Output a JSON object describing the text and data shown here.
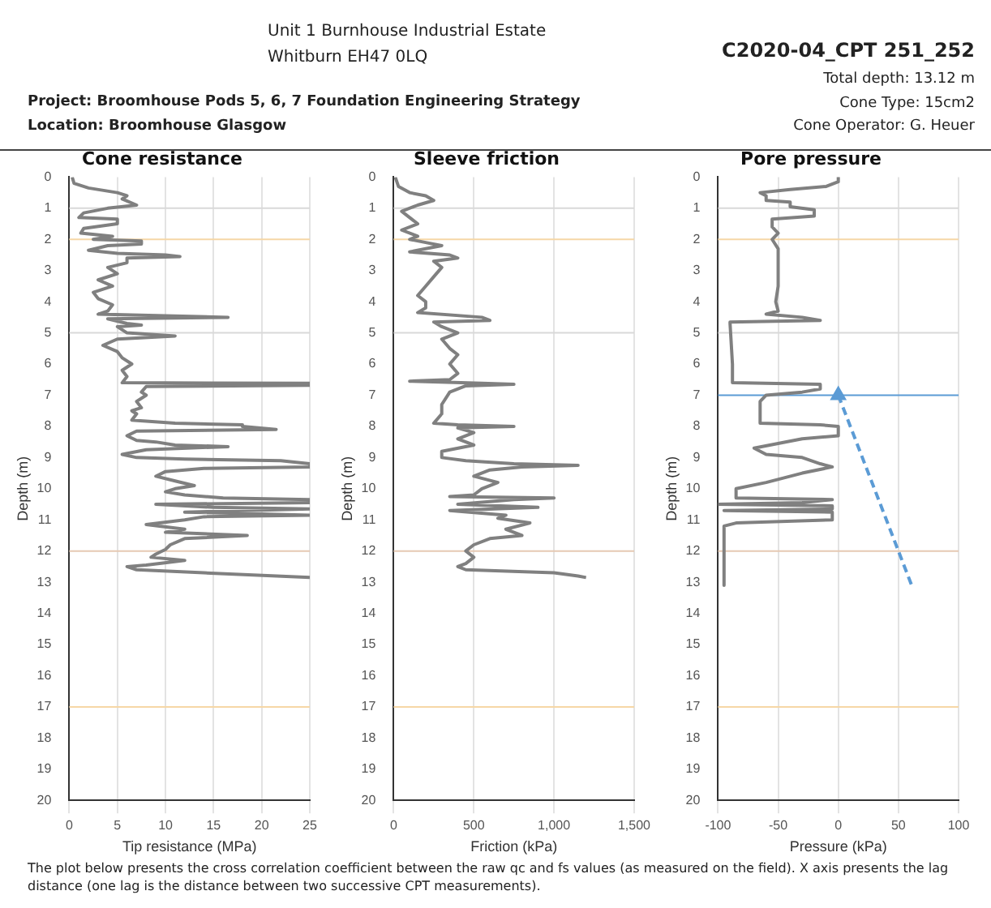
{
  "chart_data": [
    {
      "type": "other",
      "title": "C2020-04_CPT 251_252",
      "annotations": [
        "Unit 1 Burnhouse Industrial Estate",
        "Whitburn EH47 0LQ",
        "Project:  Broomhouse Pods 5, 6, 7 Foundation Engineering Strategy",
        "Location:  Broomhouse Glasgow",
        "Total depth: 13.12 m",
        "Cone Type: 15cm2",
        "Cone Operator: G. Heuer"
      ]
    },
    {
      "type": "line",
      "title": "Cone resistance",
      "xlabel": "Tip resistance (MPa)",
      "ylabel": "Depth (m)",
      "xlim": [
        0,
        25
      ],
      "ylim": [
        20,
        0
      ],
      "xticks": [
        0,
        5,
        10,
        15,
        20,
        25
      ],
      "yticks": [
        0,
        1,
        2,
        3,
        4,
        5,
        6,
        7,
        8,
        9,
        10,
        11,
        12,
        13,
        14,
        15,
        16,
        17,
        18,
        19,
        20
      ],
      "grid": "x",
      "ref_lines": [
        {
          "axis": "y",
          "value": 1,
          "color": "#d9d9d9"
        },
        {
          "axis": "y",
          "value": 2,
          "color": "#f6d7a6"
        },
        {
          "axis": "y",
          "value": 5,
          "color": "#d9d9d9"
        },
        {
          "axis": "y",
          "value": 12,
          "color": "#e6c9b3"
        },
        {
          "axis": "y",
          "value": 17,
          "color": "#f6d7a6"
        }
      ],
      "series": [
        {
          "color": "#808080",
          "x": [
            0.3,
            0.5,
            2,
            5,
            6,
            5.5,
            7,
            4,
            1.5,
            1,
            5,
            5,
            1.5,
            1.2,
            4.5,
            2.5,
            7.5,
            7.5,
            4,
            2,
            5,
            10,
            11.5,
            6,
            6,
            4,
            5,
            3,
            4.5,
            2.5,
            3,
            4.5,
            4,
            3,
            16.5,
            4,
            6,
            7.5,
            5,
            6,
            11,
            5,
            3.5,
            5,
            5.5,
            6.5,
            5.5,
            6,
            5.5,
            25,
            25,
            8,
            7.5,
            8,
            7,
            7.5,
            6.5,
            7,
            6.5,
            11,
            18,
            18,
            21.5,
            7,
            6,
            7,
            9,
            11,
            16.5,
            8,
            5.5,
            7,
            12,
            22,
            25,
            25,
            14,
            10,
            9,
            11,
            13,
            11,
            10,
            12,
            16,
            25,
            25,
            9,
            15,
            25,
            12,
            25,
            14,
            12,
            8,
            12,
            10,
            18.5,
            12,
            10.5,
            10,
            9,
            8.5,
            12,
            8,
            6,
            7,
            14,
            25
          ],
          "values": [
            0,
            0.2,
            0.35,
            0.5,
            0.6,
            0.7,
            0.9,
            1,
            1.15,
            1.3,
            1.35,
            1.5,
            1.65,
            1.8,
            1.9,
            2,
            2.05,
            2.15,
            2.2,
            2.35,
            2.45,
            2.5,
            2.55,
            2.6,
            2.75,
            2.9,
            3.1,
            3.3,
            3.5,
            3.7,
            3.9,
            4.1,
            4.3,
            4.4,
            4.5,
            4.55,
            4.7,
            4.75,
            4.8,
            5,
            5.1,
            5.2,
            5.4,
            5.6,
            5.8,
            6,
            6.2,
            6.4,
            6.6,
            6.62,
            6.68,
            6.72,
            6.9,
            7,
            7.2,
            7.4,
            7.5,
            7.6,
            7.8,
            7.9,
            7.95,
            8,
            8.1,
            8.15,
            8.3,
            8.45,
            8.5,
            8.6,
            8.65,
            8.75,
            8.9,
            9,
            9.05,
            9.1,
            9.2,
            9.3,
            9.35,
            9.45,
            9.6,
            9.75,
            9.9,
            10,
            10.1,
            10.2,
            10.3,
            10.35,
            10.45,
            10.5,
            10.6,
            10.65,
            10.75,
            10.85,
            10.9,
            11,
            11.15,
            11.3,
            11.4,
            11.5,
            11.6,
            11.8,
            11.95,
            12.1,
            12.2,
            12.3,
            12.45,
            12.5,
            12.6,
            12.7,
            12.85
          ]
        }
      ]
    },
    {
      "type": "line",
      "title": "Sleeve friction",
      "xlabel": "Friction (kPa)",
      "ylabel": "Depth (m)",
      "xlim": [
        0,
        1500
      ],
      "ylim": [
        20,
        0
      ],
      "xticks": [
        0,
        500,
        {
          "value": 1000,
          "label": "1,000"
        },
        {
          "value": 1500,
          "label": "1,500"
        }
      ],
      "yticks": [
        0,
        1,
        2,
        3,
        4,
        5,
        6,
        7,
        8,
        9,
        10,
        11,
        12,
        13,
        14,
        15,
        16,
        17,
        18,
        19,
        20
      ],
      "grid": "x",
      "ref_lines": [
        {
          "axis": "y",
          "value": 1,
          "color": "#d9d9d9"
        },
        {
          "axis": "y",
          "value": 2,
          "color": "#f6d7a6"
        },
        {
          "axis": "y",
          "value": 5,
          "color": "#d9d9d9"
        },
        {
          "axis": "y",
          "value": 12,
          "color": "#e6c9b3"
        },
        {
          "axis": "y",
          "value": 17,
          "color": "#f6d7a6"
        }
      ],
      "series": [
        {
          "color": "#808080",
          "x": [
            10,
            30,
            100,
            200,
            250,
            150,
            50,
            100,
            150,
            50,
            150,
            100,
            200,
            300,
            200,
            100,
            350,
            400,
            250,
            300,
            250,
            200,
            150,
            200,
            200,
            150,
            550,
            600,
            250,
            300,
            400,
            300,
            350,
            400,
            350,
            400,
            350,
            100,
            550,
            750,
            450,
            350,
            300,
            300,
            250,
            400,
            750,
            400,
            500,
            400,
            500,
            300,
            300,
            450,
            750,
            1150,
            800,
            600,
            500,
            650,
            550,
            500,
            350,
            1000,
            750,
            400,
            900,
            350,
            700,
            650,
            850,
            700,
            800,
            600,
            500,
            450,
            500,
            450,
            400,
            450,
            1000,
            1150,
            1200
          ],
          "values": [
            0,
            0.3,
            0.5,
            0.6,
            0.75,
            0.9,
            1.1,
            1.3,
            1.5,
            1.7,
            1.9,
            2,
            2.1,
            2.2,
            2.3,
            2.4,
            2.5,
            2.6,
            2.7,
            2.9,
            3.2,
            3.5,
            3.8,
            4,
            4.2,
            4.35,
            4.5,
            4.6,
            4.65,
            4.8,
            5,
            5.2,
            5.5,
            5.7,
            6,
            6.3,
            6.5,
            6.55,
            6.62,
            6.65,
            6.7,
            6.9,
            7.3,
            7.6,
            7.9,
            7.95,
            8,
            8.05,
            8.2,
            8.4,
            8.6,
            8.8,
            9,
            9.1,
            9.2,
            9.25,
            9.3,
            9.4,
            9.6,
            9.8,
            10,
            10.2,
            10.25,
            10.3,
            10.35,
            10.5,
            10.6,
            10.7,
            10.85,
            10.95,
            11.1,
            11.3,
            11.5,
            11.6,
            11.8,
            12,
            12.2,
            12.4,
            12.5,
            12.6,
            12.7,
            12.8,
            12.85
          ]
        }
      ]
    },
    {
      "type": "line",
      "title": "Pore pressure",
      "xlabel": "Pressure (kPa)",
      "ylabel": "Depth (m)",
      "xlim": [
        -100,
        100
      ],
      "ylim": [
        20,
        0
      ],
      "xticks": [
        -100,
        -50,
        0,
        50,
        100
      ],
      "yticks": [
        0,
        1,
        2,
        3,
        4,
        5,
        6,
        7,
        8,
        9,
        10,
        11,
        12,
        13,
        14,
        15,
        16,
        17,
        18,
        19,
        20
      ],
      "grid": "x",
      "ref_lines": [
        {
          "axis": "y",
          "value": 1,
          "color": "#d9d9d9"
        },
        {
          "axis": "y",
          "value": 2,
          "color": "#f6d7a6"
        },
        {
          "axis": "y",
          "value": 5,
          "color": "#d9d9d9"
        },
        {
          "axis": "y",
          "value": 7,
          "color": "#5b9bd5"
        },
        {
          "axis": "y",
          "value": 12,
          "color": "#e6c9b3"
        },
        {
          "axis": "y",
          "value": 17,
          "color": "#f6d7a6"
        }
      ],
      "series": [
        {
          "color": "#808080",
          "x": [
            0,
            0,
            -10,
            -40,
            -65,
            -60,
            -60,
            -40,
            -40,
            -20,
            -20,
            -55,
            -55,
            -50,
            -55,
            -50,
            -50,
            -52,
            -50,
            -60,
            -30,
            -15,
            -90,
            -90,
            -88,
            -88,
            -15,
            -15,
            -30,
            -60,
            -65,
            -65,
            -15,
            0,
            0,
            -30,
            -70,
            -60,
            -30,
            -15,
            -5,
            -30,
            -60,
            -85,
            -85,
            -5,
            -30,
            -100,
            -5,
            -5,
            -95,
            -5,
            -5,
            -85,
            -95,
            -95
          ],
          "values": [
            0,
            0.15,
            0.3,
            0.4,
            0.5,
            0.6,
            0.75,
            0.8,
            0.95,
            1.05,
            1.25,
            1.35,
            1.6,
            1.8,
            2,
            2.3,
            3.5,
            4,
            4.3,
            4.4,
            4.5,
            4.6,
            4.65,
            4.7,
            6,
            6.6,
            6.65,
            6.8,
            6.9,
            7,
            7.2,
            7.9,
            7.95,
            8,
            8.3,
            8.4,
            8.7,
            8.9,
            9,
            9.2,
            9.3,
            9.5,
            9.8,
            10,
            10.3,
            10.35,
            10.45,
            10.5,
            10.55,
            10.65,
            10.7,
            10.75,
            11,
            11.1,
            11.2,
            13.1
          ]
        },
        {
          "color": "#5b9bd5",
          "line_style": "dashed",
          "x": [
            0,
            61.2
          ],
          "values": [
            7,
            13.12
          ]
        },
        {
          "type": "scatter",
          "marker": "triangle",
          "color": "#5b9bd5",
          "x": [
            0
          ],
          "values": [
            7
          ]
        }
      ]
    },
    {
      "type": "other",
      "annotations": [
        "The plot below presents the cross correlation coefficient between the raw qc and fs values (as measured on the field). X axis presents the lag distance (one lag is the distance between two successive CPT measurements)."
      ]
    }
  ]
}
